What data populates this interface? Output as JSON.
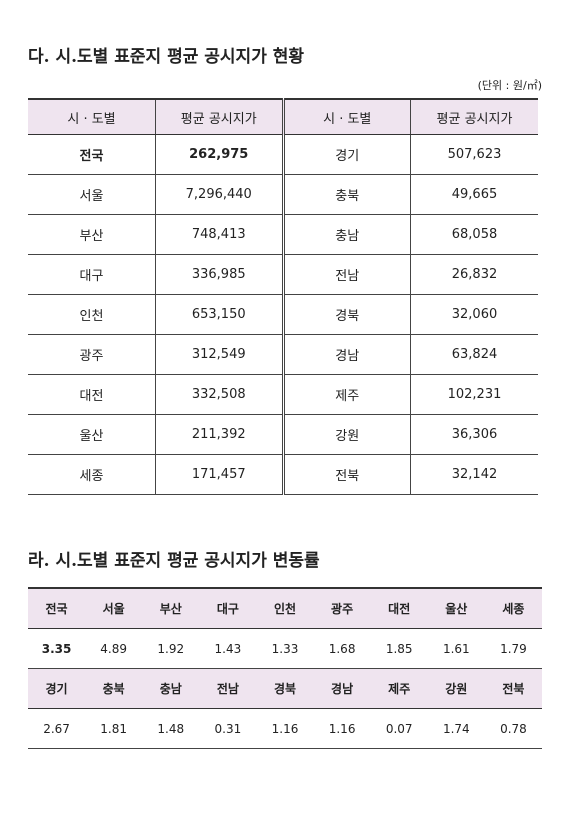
{
  "section1": {
    "title": "다. 시.도별 표준지 평균 공시지가 현황",
    "unit": "(단위 : 원/㎡)",
    "table": {
      "header": [
        "시 · 도별",
        "평균 공시지가",
        "시 · 도별",
        "평균 공시지가"
      ],
      "rows": [
        [
          "전국",
          "262,975",
          "경기",
          "507,623"
        ],
        [
          "서울",
          "7,296,440",
          "충북",
          "49,665"
        ],
        [
          "부산",
          "748,413",
          "충남",
          "68,058"
        ],
        [
          "대구",
          "336,985",
          "전남",
          "26,832"
        ],
        [
          "인천",
          "653,150",
          "경북",
          "32,060"
        ],
        [
          "광주",
          "312,549",
          "경남",
          "63,824"
        ],
        [
          "대전",
          "332,508",
          "제주",
          "102,231"
        ],
        [
          "울산",
          "211,392",
          "강원",
          "36,306"
        ],
        [
          "세종",
          "171,457",
          "전북",
          "32,142"
        ]
      ]
    }
  },
  "section2": {
    "title": "라. 시.도별 표준지 평균 공시지가 변동률",
    "table": {
      "rows": [
        [
          "전국",
          "서울",
          "부산",
          "대구",
          "인천",
          "광주",
          "대전",
          "울산",
          "세종"
        ],
        [
          "3.35",
          "4.89",
          "1.92",
          "1.43",
          "1.33",
          "1.68",
          "1.85",
          "1.61",
          "1.79"
        ],
        [
          "경기",
          "충북",
          "충남",
          "전남",
          "경북",
          "경남",
          "제주",
          "강원",
          "전북"
        ],
        [
          "2.67",
          "1.81",
          "1.48",
          "0.31",
          "1.16",
          "1.16",
          "0.07",
          "1.74",
          "0.78"
        ]
      ]
    }
  }
}
